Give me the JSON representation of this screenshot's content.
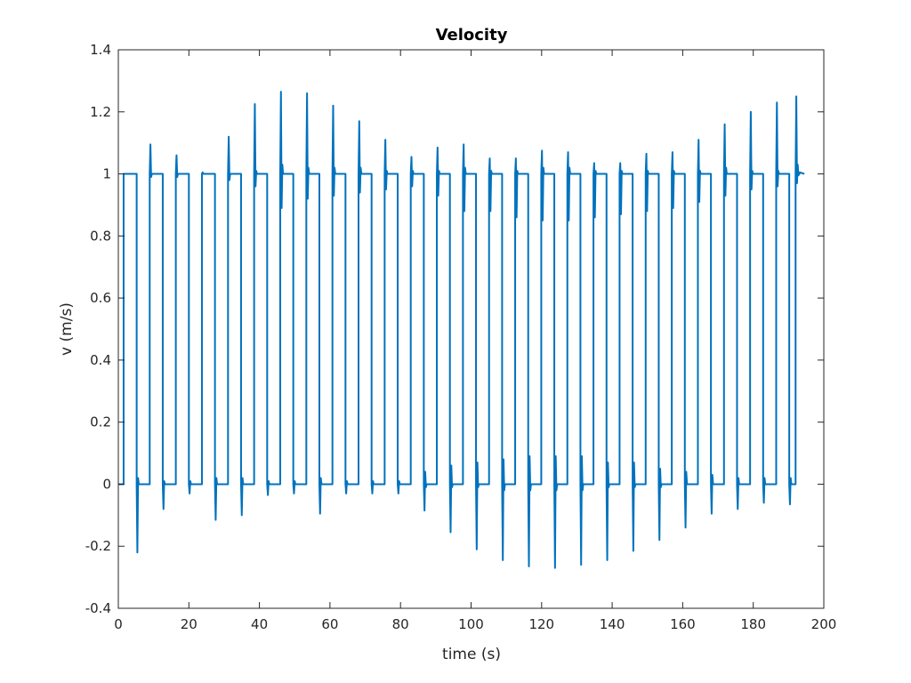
{
  "chart_data": {
    "type": "line",
    "title": "Velocity",
    "xlabel": "time (s)",
    "ylabel": "v (m/s)",
    "xlim": [
      0,
      200
    ],
    "ylim": [
      -0.4,
      1.4
    ],
    "xticks": [
      "0",
      "20",
      "40",
      "60",
      "80",
      "100",
      "120",
      "140",
      "160",
      "180",
      "200"
    ],
    "yticks": [
      "-0.4",
      "-0.2",
      "0",
      "0.2",
      "0.4",
      "0.6",
      "0.8",
      "1",
      "1.2",
      "1.4"
    ],
    "grid": true,
    "legend": "none",
    "series": [
      {
        "color": "#0072BD",
        "points": [
          [
            0.0,
            0
          ],
          [
            1.5,
            0
          ],
          [
            1.5,
            1
          ],
          [
            5.2,
            1
          ],
          [
            5.2,
            0
          ],
          [
            5.4,
            -0.22
          ],
          [
            5.6,
            0.02
          ],
          [
            5.8,
            0
          ],
          [
            8.9,
            0
          ],
          [
            8.9,
            1
          ],
          [
            9.1,
            1.095
          ],
          [
            9.3,
            0.99
          ],
          [
            9.5,
            1
          ],
          [
            12.6,
            1
          ],
          [
            12.6,
            0
          ],
          [
            12.8,
            -0.08
          ],
          [
            13.0,
            0.01
          ],
          [
            13.2,
            0
          ],
          [
            16.3,
            0
          ],
          [
            16.3,
            1
          ],
          [
            16.5,
            1.06
          ],
          [
            16.7,
            0.99
          ],
          [
            16.9,
            1
          ],
          [
            20.0,
            1
          ],
          [
            20.0,
            0
          ],
          [
            20.2,
            -0.03
          ],
          [
            20.4,
            0.01
          ],
          [
            20.6,
            0
          ],
          [
            23.7,
            0
          ],
          [
            23.7,
            1
          ],
          [
            23.9,
            1.005
          ],
          [
            24.1,
            1
          ],
          [
            27.4,
            1
          ],
          [
            27.4,
            0
          ],
          [
            27.6,
            -0.115
          ],
          [
            27.8,
            0.02
          ],
          [
            28.0,
            0
          ],
          [
            31.1,
            0
          ],
          [
            31.1,
            1
          ],
          [
            31.3,
            1.12
          ],
          [
            31.5,
            0.98
          ],
          [
            31.7,
            1
          ],
          [
            34.8,
            1
          ],
          [
            34.8,
            0
          ],
          [
            35.0,
            -0.1
          ],
          [
            35.2,
            0.02
          ],
          [
            35.4,
            0
          ],
          [
            38.5,
            0
          ],
          [
            38.5,
            1
          ],
          [
            38.7,
            1.225
          ],
          [
            38.9,
            0.96
          ],
          [
            39.1,
            1.01
          ],
          [
            39.3,
            1
          ],
          [
            42.2,
            1
          ],
          [
            42.2,
            0
          ],
          [
            42.4,
            -0.035
          ],
          [
            42.6,
            0.01
          ],
          [
            42.8,
            0
          ],
          [
            45.9,
            0
          ],
          [
            45.9,
            1
          ],
          [
            46.1,
            1.265
          ],
          [
            46.3,
            0.89
          ],
          [
            46.5,
            1.03
          ],
          [
            46.7,
            1
          ],
          [
            49.6,
            1
          ],
          [
            49.6,
            0
          ],
          [
            49.8,
            -0.03
          ],
          [
            50.0,
            0.01
          ],
          [
            50.2,
            0
          ],
          [
            53.3,
            0
          ],
          [
            53.3,
            1
          ],
          [
            53.5,
            1.26
          ],
          [
            53.7,
            0.92
          ],
          [
            53.9,
            1.02
          ],
          [
            54.1,
            1
          ],
          [
            57.0,
            1
          ],
          [
            57.0,
            0
          ],
          [
            57.2,
            -0.095
          ],
          [
            57.4,
            0.02
          ],
          [
            57.6,
            0
          ],
          [
            60.7,
            0
          ],
          [
            60.7,
            1
          ],
          [
            60.9,
            1.22
          ],
          [
            61.1,
            0.93
          ],
          [
            61.3,
            1.02
          ],
          [
            61.5,
            1
          ],
          [
            64.4,
            1
          ],
          [
            64.4,
            0
          ],
          [
            64.6,
            -0.03
          ],
          [
            64.8,
            0.01
          ],
          [
            65.0,
            0
          ],
          [
            68.1,
            0
          ],
          [
            68.1,
            1
          ],
          [
            68.3,
            1.17
          ],
          [
            68.5,
            0.94
          ],
          [
            68.7,
            1.02
          ],
          [
            68.9,
            1
          ],
          [
            71.8,
            1
          ],
          [
            71.8,
            0
          ],
          [
            72.0,
            -0.03
          ],
          [
            72.2,
            0.01
          ],
          [
            72.4,
            0
          ],
          [
            75.5,
            0
          ],
          [
            75.5,
            1
          ],
          [
            75.7,
            1.11
          ],
          [
            75.9,
            0.95
          ],
          [
            76.1,
            1.01
          ],
          [
            76.3,
            1
          ],
          [
            79.2,
            1
          ],
          [
            79.2,
            0
          ],
          [
            79.4,
            -0.03
          ],
          [
            79.6,
            0.01
          ],
          [
            79.8,
            0
          ],
          [
            82.9,
            0
          ],
          [
            82.9,
            1
          ],
          [
            83.1,
            1.055
          ],
          [
            83.3,
            0.96
          ],
          [
            83.5,
            1.01
          ],
          [
            83.7,
            1
          ],
          [
            86.6,
            1
          ],
          [
            86.6,
            0
          ],
          [
            86.8,
            -0.085
          ],
          [
            87.0,
            0.04
          ],
          [
            87.2,
            -0.01
          ],
          [
            87.4,
            0
          ],
          [
            90.3,
            0
          ],
          [
            90.3,
            1
          ],
          [
            90.5,
            1.085
          ],
          [
            90.7,
            0.93
          ],
          [
            90.9,
            1.01
          ],
          [
            91.1,
            1
          ],
          [
            94.0,
            1
          ],
          [
            94.0,
            0
          ],
          [
            94.2,
            -0.155
          ],
          [
            94.4,
            0.06
          ],
          [
            94.6,
            -0.01
          ],
          [
            94.8,
            0
          ],
          [
            97.7,
            0
          ],
          [
            97.7,
            1
          ],
          [
            97.9,
            1.095
          ],
          [
            98.1,
            0.88
          ],
          [
            98.3,
            1.02
          ],
          [
            98.5,
            1
          ],
          [
            101.4,
            1
          ],
          [
            101.4,
            0
          ],
          [
            101.6,
            -0.21
          ],
          [
            101.8,
            0.07
          ],
          [
            102.0,
            -0.01
          ],
          [
            102.2,
            0
          ],
          [
            105.1,
            0
          ],
          [
            105.1,
            1
          ],
          [
            105.3,
            1.05
          ],
          [
            105.5,
            0.88
          ],
          [
            105.7,
            1.01
          ],
          [
            105.9,
            1
          ],
          [
            108.8,
            1
          ],
          [
            108.8,
            0
          ],
          [
            109.0,
            -0.245
          ],
          [
            109.2,
            0.08
          ],
          [
            109.4,
            -0.02
          ],
          [
            109.6,
            0
          ],
          [
            112.5,
            0
          ],
          [
            112.5,
            1
          ],
          [
            112.7,
            1.05
          ],
          [
            112.9,
            0.86
          ],
          [
            113.1,
            1.01
          ],
          [
            113.3,
            1
          ],
          [
            116.2,
            1
          ],
          [
            116.2,
            0
          ],
          [
            116.4,
            -0.265
          ],
          [
            116.6,
            0.09
          ],
          [
            116.8,
            -0.02
          ],
          [
            117.0,
            0
          ],
          [
            119.9,
            0
          ],
          [
            119.9,
            1
          ],
          [
            120.1,
            1.075
          ],
          [
            120.3,
            0.85
          ],
          [
            120.5,
            1.02
          ],
          [
            120.7,
            1
          ],
          [
            123.6,
            1
          ],
          [
            123.6,
            0
          ],
          [
            123.8,
            -0.27
          ],
          [
            124.0,
            0.09
          ],
          [
            124.2,
            -0.02
          ],
          [
            124.4,
            0
          ],
          [
            127.3,
            0
          ],
          [
            127.3,
            1
          ],
          [
            127.5,
            1.07
          ],
          [
            127.7,
            0.85
          ],
          [
            127.9,
            1.02
          ],
          [
            128.1,
            1
          ],
          [
            131.0,
            1
          ],
          [
            131.0,
            0
          ],
          [
            131.2,
            -0.26
          ],
          [
            131.4,
            0.09
          ],
          [
            131.6,
            -0.02
          ],
          [
            131.8,
            0
          ],
          [
            134.7,
            0
          ],
          [
            134.7,
            1
          ],
          [
            134.9,
            1.035
          ],
          [
            135.1,
            0.86
          ],
          [
            135.3,
            1.01
          ],
          [
            135.5,
            1
          ],
          [
            138.4,
            1
          ],
          [
            138.4,
            0
          ],
          [
            138.6,
            -0.245
          ],
          [
            138.8,
            0.07
          ],
          [
            139.0,
            -0.01
          ],
          [
            139.2,
            0
          ],
          [
            142.1,
            0
          ],
          [
            142.1,
            1
          ],
          [
            142.3,
            1.035
          ],
          [
            142.5,
            0.87
          ],
          [
            142.7,
            1.01
          ],
          [
            142.9,
            1
          ],
          [
            145.8,
            1
          ],
          [
            145.8,
            0
          ],
          [
            146.0,
            -0.215
          ],
          [
            146.2,
            0.07
          ],
          [
            146.4,
            -0.01
          ],
          [
            146.6,
            0
          ],
          [
            149.5,
            0
          ],
          [
            149.5,
            1
          ],
          [
            149.7,
            1.065
          ],
          [
            149.9,
            0.88
          ],
          [
            150.1,
            1.01
          ],
          [
            150.3,
            1
          ],
          [
            153.2,
            1
          ],
          [
            153.2,
            0
          ],
          [
            153.4,
            -0.18
          ],
          [
            153.6,
            0.05
          ],
          [
            153.8,
            -0.01
          ],
          [
            154.0,
            0
          ],
          [
            156.9,
            0
          ],
          [
            156.9,
            1
          ],
          [
            157.1,
            1.07
          ],
          [
            157.3,
            0.89
          ],
          [
            157.5,
            1.01
          ],
          [
            157.7,
            1
          ],
          [
            160.6,
            1
          ],
          [
            160.6,
            0
          ],
          [
            160.8,
            -0.14
          ],
          [
            161.0,
            0.04
          ],
          [
            161.2,
            0
          ],
          [
            164.3,
            0
          ],
          [
            164.3,
            1
          ],
          [
            164.5,
            1.11
          ],
          [
            164.7,
            0.91
          ],
          [
            164.9,
            1.01
          ],
          [
            165.1,
            1
          ],
          [
            168.0,
            1
          ],
          [
            168.0,
            0
          ],
          [
            168.2,
            -0.095
          ],
          [
            168.4,
            0.03
          ],
          [
            168.6,
            0
          ],
          [
            171.7,
            0
          ],
          [
            171.7,
            1
          ],
          [
            171.9,
            1.16
          ],
          [
            172.1,
            0.93
          ],
          [
            172.3,
            1.02
          ],
          [
            172.5,
            1
          ],
          [
            175.4,
            1
          ],
          [
            175.4,
            0
          ],
          [
            175.6,
            -0.08
          ],
          [
            175.8,
            0.02
          ],
          [
            176.0,
            0
          ],
          [
            179.1,
            0
          ],
          [
            179.1,
            1
          ],
          [
            179.3,
            1.2
          ],
          [
            179.5,
            0.95
          ],
          [
            179.7,
            1.01
          ],
          [
            179.9,
            1
          ],
          [
            182.8,
            1
          ],
          [
            182.8,
            0
          ],
          [
            183.0,
            -0.06
          ],
          [
            183.2,
            0.02
          ],
          [
            183.4,
            0
          ],
          [
            186.5,
            0
          ],
          [
            186.5,
            1
          ],
          [
            186.7,
            1.23
          ],
          [
            186.9,
            0.96
          ],
          [
            187.1,
            1.01
          ],
          [
            187.3,
            1
          ],
          [
            190.2,
            1
          ],
          [
            190.2,
            0
          ],
          [
            190.4,
            -0.065
          ],
          [
            190.6,
            0.02
          ],
          [
            190.8,
            0
          ],
          [
            192.0,
            0
          ],
          [
            192.0,
            1
          ],
          [
            192.2,
            1.25
          ],
          [
            192.4,
            0.97
          ],
          [
            192.6,
            1.03
          ],
          [
            192.8,
            0.995
          ],
          [
            193.2,
            1.005
          ],
          [
            194.5,
            1
          ]
        ]
      }
    ]
  }
}
